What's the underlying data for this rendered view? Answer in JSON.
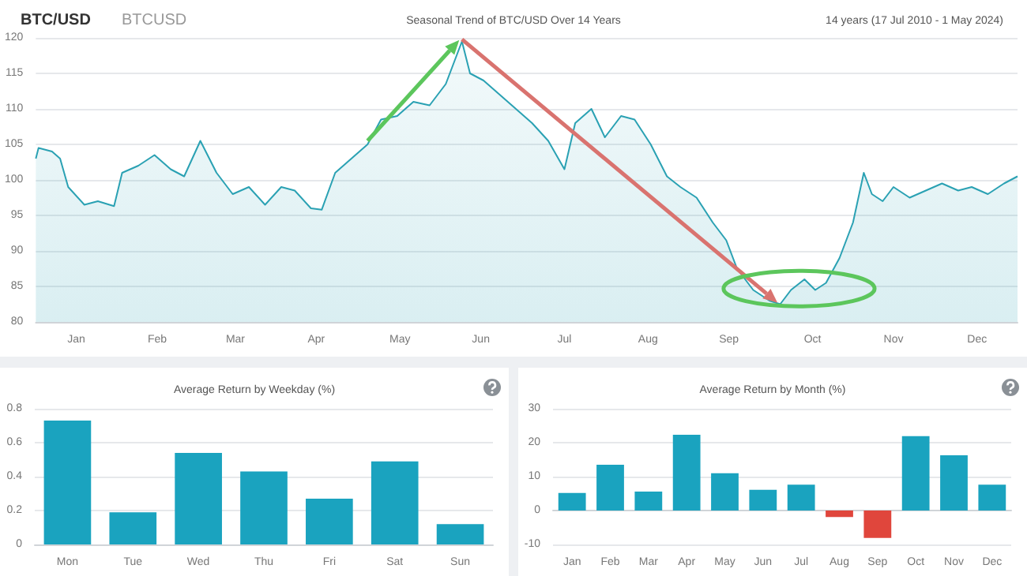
{
  "chart_data": [
    {
      "type": "area",
      "title": "Seasonal Trend of BTC/USD Over 14 Years",
      "subtitle": "14 years (17 Jul 2010 - 1 May 2024)",
      "annotations": [
        "BTC/USD",
        "BTCUSD"
      ],
      "color": "#2aa1b3",
      "grid": "y",
      "xlim": [
        "--01-01",
        "--12-31"
      ],
      "xticks": [
        {
          "value": "--01-16",
          "label": "Jan"
        },
        {
          "value": "--02-15",
          "label": "Feb"
        },
        {
          "value": "--03-16",
          "label": "Mar"
        },
        {
          "value": "--04-15",
          "label": "Apr"
        },
        {
          "value": "--05-16",
          "label": "May"
        },
        {
          "value": "--06-15",
          "label": "Jun"
        },
        {
          "value": "--07-16",
          "label": "Jul"
        },
        {
          "value": "--08-16",
          "label": "Aug"
        },
        {
          "value": "--09-15",
          "label": "Sep"
        },
        {
          "value": "--10-16",
          "label": "Oct"
        },
        {
          "value": "--11-15",
          "label": "Nov"
        },
        {
          "value": "--12-16",
          "label": "Dec"
        }
      ],
      "ylim": [
        80,
        120
      ],
      "yticks": [
        80,
        85,
        90,
        95,
        100,
        105,
        110,
        115,
        120
      ],
      "x": [
        "--01-01",
        "--01-02",
        "--01-07",
        "--01-10",
        "--01-13",
        "--01-19",
        "--01-24",
        "--01-30",
        "--02-02",
        "--02-08",
        "--02-14",
        "--02-20",
        "--02-25",
        "--03-03",
        "--03-09",
        "--03-15",
        "--03-21",
        "--03-27",
        "--04-02",
        "--04-07",
        "--04-13",
        "--04-17",
        "--04-22",
        "--04-28",
        "--05-04",
        "--05-09",
        "--05-15",
        "--05-21",
        "--05-27",
        "--06-02",
        "--06-08",
        "--06-11",
        "--06-16",
        "--06-22",
        "--06-28",
        "--07-04",
        "--07-10",
        "--07-16",
        "--07-20",
        "--07-26",
        "--07-31",
        "--08-06",
        "--08-11",
        "--08-17",
        "--08-23",
        "--08-28",
        "--09-03",
        "--09-09",
        "--09-14",
        "--09-18",
        "--09-24",
        "--09-30",
        "--10-04",
        "--10-08",
        "--10-13",
        "--10-17",
        "--10-21",
        "--10-26",
        "--10-31",
        "--11-04",
        "--11-07",
        "--11-11",
        "--11-15",
        "--11-21",
        "--11-27",
        "--12-03",
        "--12-09",
        "--12-14",
        "--12-20",
        "--12-26",
        "--12-31"
      ],
      "values": [
        103,
        104.5,
        104,
        103,
        99,
        96.5,
        97,
        96.3,
        101,
        102,
        103.5,
        101.5,
        100.5,
        105.5,
        101,
        98,
        99,
        96.5,
        99,
        98.5,
        96,
        95.8,
        101,
        103,
        105,
        108.5,
        109,
        111,
        110.5,
        113.5,
        119.5,
        115,
        114,
        112,
        110,
        108,
        105.5,
        101.5,
        108,
        110,
        106,
        109,
        108.5,
        105,
        100.5,
        99,
        97.5,
        94,
        91.5,
        87.5,
        84.5,
        83,
        82.5,
        84.5,
        86,
        84.5,
        85.5,
        89,
        94,
        101,
        98,
        97,
        99,
        97.5,
        98.5,
        99.5,
        98.5,
        99,
        98,
        99.5,
        100.5
      ]
    },
    {
      "type": "bar",
      "title": "Average Return by Weekday (%)",
      "categories": [
        "Mon",
        "Tue",
        "Wed",
        "Thu",
        "Fri",
        "Sat",
        "Sun"
      ],
      "values": [
        0.73,
        0.19,
        0.54,
        0.43,
        0.27,
        0.49,
        0.12
      ],
      "color": "#1aa3bf",
      "grid": "y",
      "ylim": [
        0,
        0.8
      ],
      "yticks": [
        0,
        0.2,
        0.4,
        0.6,
        0.8
      ]
    },
    {
      "type": "bar",
      "title": "Average Return by Month (%)",
      "categories": [
        "Jan",
        "Feb",
        "Mar",
        "Apr",
        "May",
        "Jun",
        "Jul",
        "Aug",
        "Sep",
        "Oct",
        "Nov",
        "Dec"
      ],
      "values": [
        5.2,
        13.5,
        5.6,
        22.3,
        11,
        6.1,
        7.6,
        -1.9,
        -8.1,
        21.9,
        16.3,
        7.6
      ],
      "colors": [
        "#1aa3bf",
        "#1aa3bf",
        "#1aa3bf",
        "#1aa3bf",
        "#1aa3bf",
        "#1aa3bf",
        "#1aa3bf",
        "#e0463c",
        "#e0463c",
        "#1aa3bf",
        "#1aa3bf",
        "#1aa3bf"
      ],
      "grid": "y",
      "ylim": [
        -10,
        30
      ],
      "yticks": [
        -10,
        0,
        10,
        20,
        30
      ]
    }
  ]
}
